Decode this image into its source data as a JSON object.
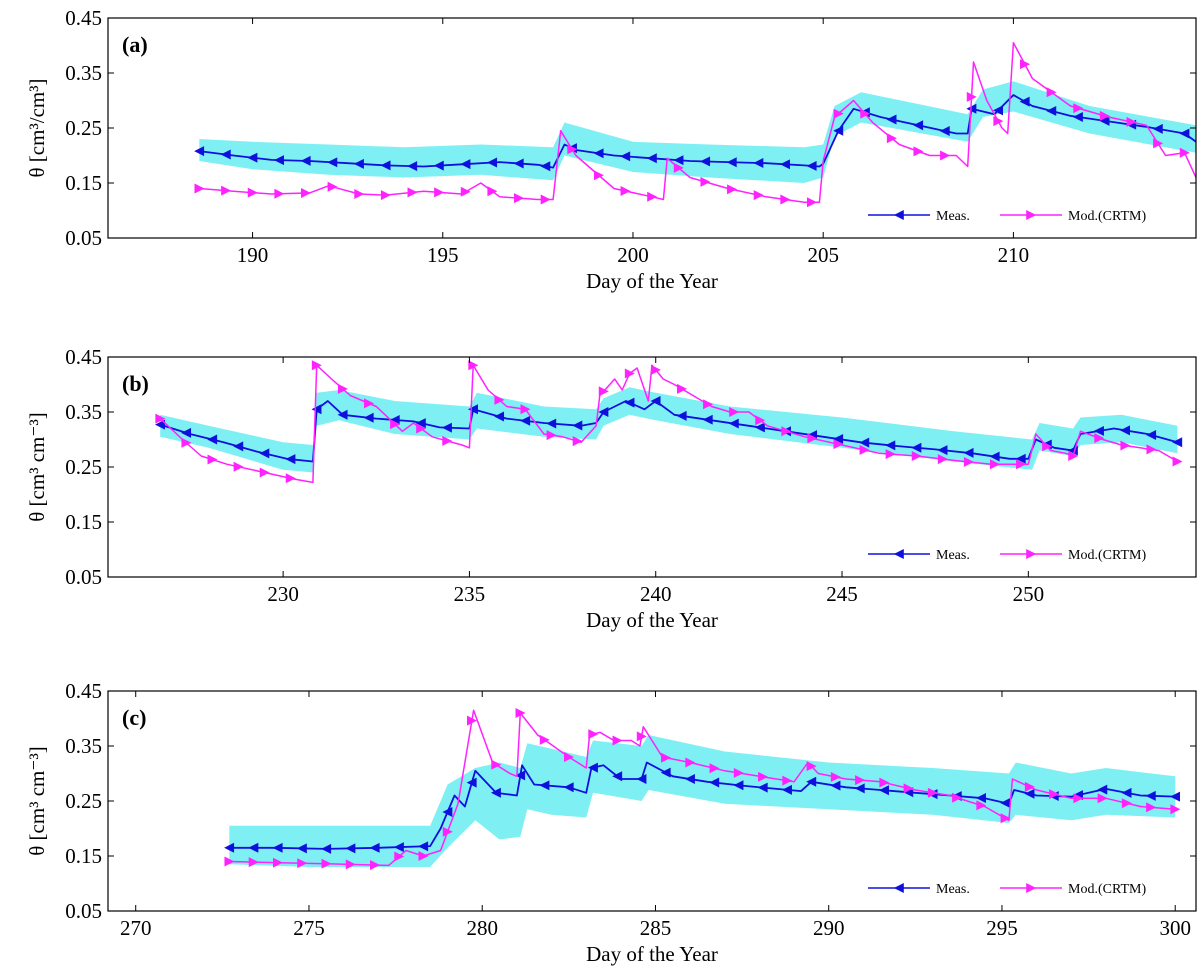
{
  "colors": {
    "meas": "#1010dd",
    "model": "#ff22ff",
    "band": "#7ef0f4",
    "axis": "#000000"
  },
  "legend": {
    "meas": "Meas.",
    "model": "Mod.(CRTM)"
  },
  "chart_data": [
    {
      "type": "line",
      "panel_label": "(a)",
      "xlabel": "Day of the Year",
      "ylabel": "θ [cm³/cm³]",
      "xlim": [
        186.2,
        214.8
      ],
      "ylim": [
        0.05,
        0.45
      ],
      "xticks": [
        190,
        195,
        200,
        205,
        210
      ],
      "yticks": [
        0.05,
        0.15,
        0.25,
        0.35,
        0.45
      ],
      "xtick_labels": [
        "190",
        "195",
        "200",
        "205",
        "210"
      ],
      "ytick_labels": [
        "0.05",
        "0.15",
        "0.25",
        "0.35",
        "0.45"
      ],
      "legend_position": "bottom-right",
      "band": {
        "name": "uncertainty band",
        "x": [
          188.6,
          190,
          192,
          194,
          196,
          197.9,
          198.2,
          200,
          202,
          204.5,
          205.0,
          205.3,
          206,
          208.8,
          209.2,
          210,
          212,
          214.8
        ],
        "upper": [
          0.23,
          0.225,
          0.22,
          0.215,
          0.22,
          0.215,
          0.26,
          0.225,
          0.22,
          0.215,
          0.22,
          0.29,
          0.315,
          0.275,
          0.32,
          0.335,
          0.29,
          0.255
        ],
        "lower": [
          0.19,
          0.175,
          0.165,
          0.16,
          0.165,
          0.155,
          0.2,
          0.17,
          0.16,
          0.15,
          0.16,
          0.235,
          0.26,
          0.225,
          0.27,
          0.28,
          0.24,
          0.205
        ]
      },
      "series": [
        {
          "name": "Meas.",
          "x": [
            188.6,
            189.5,
            190.5,
            191.5,
            192.5,
            193.5,
            194.5,
            195.5,
            196.5,
            197.5,
            197.9,
            198.2,
            198.5,
            199.5,
            200.5,
            201.5,
            202.5,
            203.5,
            204.5,
            204.9,
            205.0,
            205.4,
            205.8,
            206.5,
            207.5,
            208.5,
            208.8,
            208.9,
            209.5,
            210.0,
            210.5,
            211.5,
            212.5,
            213.5,
            214.5,
            214.8
          ],
          "y": [
            0.208,
            0.2,
            0.192,
            0.19,
            0.186,
            0.182,
            0.18,
            0.184,
            0.188,
            0.183,
            0.178,
            0.22,
            0.21,
            0.2,
            0.195,
            0.19,
            0.188,
            0.186,
            0.182,
            0.18,
            0.185,
            0.245,
            0.285,
            0.27,
            0.255,
            0.24,
            0.24,
            0.285,
            0.275,
            0.31,
            0.29,
            0.272,
            0.262,
            0.252,
            0.24,
            0.225
          ]
        },
        {
          "name": "Mod.(CRTM)",
          "x": [
            188.6,
            189.5,
            190.5,
            191.5,
            192.0,
            192.8,
            193.5,
            194.5,
            195.5,
            196.0,
            196.5,
            197.5,
            197.9,
            198.1,
            198.5,
            199.5,
            200.5,
            200.8,
            200.9,
            201.5,
            202.5,
            203.5,
            204.5,
            204.9,
            205.0,
            205.3,
            205.8,
            206.3,
            207.0,
            207.8,
            208.5,
            208.8,
            208.95,
            209.3,
            209.7,
            209.85,
            210.0,
            210.5,
            211.5,
            212.5,
            213.5,
            214.0,
            214.5,
            214.8
          ],
          "y": [
            0.14,
            0.135,
            0.13,
            0.132,
            0.145,
            0.13,
            0.128,
            0.135,
            0.13,
            0.15,
            0.125,
            0.12,
            0.12,
            0.245,
            0.2,
            0.14,
            0.125,
            0.12,
            0.195,
            0.16,
            0.14,
            0.125,
            0.115,
            0.115,
            0.19,
            0.27,
            0.3,
            0.26,
            0.22,
            0.2,
            0.2,
            0.18,
            0.37,
            0.3,
            0.25,
            0.24,
            0.405,
            0.34,
            0.29,
            0.27,
            0.255,
            0.2,
            0.205,
            0.16
          ]
        }
      ]
    },
    {
      "type": "line",
      "panel_label": "(b)",
      "xlabel": "Day of the Year",
      "ylabel": "θ [cm³ cm⁻³]",
      "xlim": [
        225.3,
        254.5
      ],
      "ylim": [
        0.05,
        0.45
      ],
      "xticks": [
        230,
        235,
        240,
        245,
        250
      ],
      "yticks": [
        0.05,
        0.15,
        0.25,
        0.35,
        0.45
      ],
      "xtick_labels": [
        "230",
        "235",
        "240",
        "245",
        "250"
      ],
      "ytick_labels": [
        "0.05",
        "0.15",
        "0.25",
        "0.35",
        "0.45"
      ],
      "legend_position": "bottom-right",
      "band": {
        "name": "uncertainty band",
        "x": [
          226.7,
          228,
          229,
          230.0,
          230.8,
          230.9,
          231.5,
          233,
          235.0,
          235.2,
          237,
          238.4,
          238.6,
          239.3,
          240,
          242,
          245,
          248,
          250.1,
          250.3,
          251.2,
          251.4,
          252.5,
          254
        ],
        "upper": [
          0.345,
          0.325,
          0.31,
          0.295,
          0.29,
          0.385,
          0.39,
          0.37,
          0.36,
          0.385,
          0.36,
          0.355,
          0.375,
          0.395,
          0.385,
          0.36,
          0.34,
          0.315,
          0.3,
          0.33,
          0.32,
          0.34,
          0.345,
          0.325
        ],
        "lower": [
          0.305,
          0.285,
          0.265,
          0.245,
          0.24,
          0.325,
          0.335,
          0.31,
          0.3,
          0.32,
          0.305,
          0.3,
          0.325,
          0.345,
          0.335,
          0.31,
          0.285,
          0.26,
          0.245,
          0.28,
          0.27,
          0.29,
          0.295,
          0.275
        ]
      },
      "series": [
        {
          "name": "Meas.",
          "x": [
            226.7,
            227.5,
            228.4,
            229.3,
            230.1,
            230.8,
            230.9,
            231.2,
            231.6,
            232.5,
            233.5,
            234.2,
            235.0,
            235.1,
            236,
            237,
            238,
            238.4,
            238.6,
            239.2,
            239.7,
            240.0,
            240.5,
            241.5,
            242.5,
            243.5,
            244.5,
            245.5,
            246.5,
            247.5,
            248.5,
            249.5,
            250.0,
            250.2,
            250.7,
            251.2,
            251.4,
            252.3,
            253.2,
            254.0
          ],
          "y": [
            0.327,
            0.31,
            0.295,
            0.278,
            0.265,
            0.26,
            0.355,
            0.37,
            0.345,
            0.338,
            0.333,
            0.322,
            0.32,
            0.355,
            0.338,
            0.33,
            0.325,
            0.33,
            0.35,
            0.37,
            0.355,
            0.37,
            0.345,
            0.335,
            0.325,
            0.315,
            0.305,
            0.295,
            0.288,
            0.282,
            0.275,
            0.265,
            0.265,
            0.3,
            0.285,
            0.28,
            0.31,
            0.32,
            0.31,
            0.295
          ]
        },
        {
          "name": "Mod.(CRTM)",
          "x": [
            226.7,
            227.3,
            227.8,
            228.5,
            229.5,
            230.3,
            230.8,
            230.9,
            231.3,
            231.8,
            232.5,
            233.2,
            233.5,
            234.0,
            234.8,
            235.0,
            235.1,
            235.5,
            236.0,
            236.5,
            237.0,
            237.5,
            238.0,
            238.4,
            238.5,
            238.7,
            238.9,
            239.1,
            239.3,
            239.5,
            239.8,
            239.9,
            240.2,
            240.5,
            241.0,
            241.5,
            242.0,
            242.5,
            243.0,
            244.0,
            245.0,
            246.0,
            247.0,
            248.0,
            249.0,
            250.0,
            250.2,
            250.6,
            251.0,
            251.2,
            251.4,
            252.0,
            252.5,
            253.0,
            253.5,
            254.0
          ],
          "y": [
            0.338,
            0.3,
            0.27,
            0.255,
            0.24,
            0.228,
            0.222,
            0.435,
            0.41,
            0.38,
            0.36,
            0.315,
            0.33,
            0.305,
            0.29,
            0.285,
            0.435,
            0.39,
            0.36,
            0.355,
            0.31,
            0.305,
            0.295,
            0.325,
            0.38,
            0.395,
            0.41,
            0.39,
            0.42,
            0.43,
            0.37,
            0.435,
            0.41,
            0.4,
            0.38,
            0.36,
            0.35,
            0.35,
            0.325,
            0.305,
            0.29,
            0.275,
            0.27,
            0.262,
            0.255,
            0.255,
            0.31,
            0.28,
            0.275,
            0.27,
            0.315,
            0.3,
            0.29,
            0.285,
            0.28,
            0.26
          ]
        }
      ]
    },
    {
      "type": "line",
      "panel_label": "(c)",
      "xlabel": "Day of the Year",
      "ylabel": "θ [cm³ cm⁻³]",
      "xlim": [
        269.2,
        300.6
      ],
      "ylim": [
        0.05,
        0.45
      ],
      "xticks": [
        270,
        275,
        280,
        285,
        290,
        295,
        300
      ],
      "yticks": [
        0.05,
        0.15,
        0.25,
        0.35,
        0.45
      ],
      "xtick_labels": [
        "270",
        "275",
        "280",
        "285",
        "290",
        "295",
        "300"
      ],
      "ytick_labels": [
        "0.05",
        "0.15",
        "0.25",
        "0.35",
        "0.45"
      ],
      "legend_position": "bottom-right",
      "band": {
        "name": "uncertainty band",
        "x": [
          272.7,
          275,
          278.5,
          279.0,
          279.8,
          280.5,
          281.1,
          281.3,
          282,
          283.0,
          283.2,
          284.6,
          284.8,
          287,
          290,
          293,
          295.2,
          295.4,
          297,
          298,
          300
        ],
        "upper": [
          0.205,
          0.205,
          0.205,
          0.28,
          0.31,
          0.32,
          0.31,
          0.355,
          0.345,
          0.33,
          0.36,
          0.35,
          0.37,
          0.34,
          0.32,
          0.31,
          0.3,
          0.32,
          0.3,
          0.31,
          0.295
        ],
        "lower": [
          0.135,
          0.13,
          0.13,
          0.165,
          0.215,
          0.18,
          0.185,
          0.235,
          0.225,
          0.22,
          0.265,
          0.25,
          0.27,
          0.245,
          0.235,
          0.225,
          0.21,
          0.225,
          0.215,
          0.225,
          0.22
        ]
      },
      "series": [
        {
          "name": "Meas.",
          "x": [
            272.7,
            274,
            275.5,
            277,
            278.5,
            278.8,
            279.2,
            279.5,
            279.8,
            280.4,
            281.0,
            281.15,
            281.5,
            282.5,
            283.0,
            283.15,
            283.5,
            284.0,
            284.6,
            284.75,
            285.5,
            286.5,
            287.5,
            288.5,
            289.2,
            289.5,
            290.5,
            291.5,
            292.5,
            293.5,
            294.5,
            295.2,
            295.35,
            296,
            297,
            298,
            299,
            300
          ],
          "y": [
            0.165,
            0.165,
            0.163,
            0.165,
            0.168,
            0.2,
            0.26,
            0.24,
            0.305,
            0.265,
            0.26,
            0.315,
            0.28,
            0.275,
            0.265,
            0.31,
            0.315,
            0.29,
            0.29,
            0.32,
            0.295,
            0.285,
            0.278,
            0.272,
            0.268,
            0.285,
            0.275,
            0.27,
            0.265,
            0.26,
            0.255,
            0.245,
            0.27,
            0.26,
            0.258,
            0.272,
            0.26,
            0.258
          ]
        },
        {
          "name": "Mod.(CRTM)",
          "x": [
            272.7,
            274,
            275.5,
            277.3,
            277.8,
            278.3,
            278.8,
            279.3,
            279.75,
            280.3,
            280.8,
            281.0,
            281.1,
            281.6,
            282.5,
            283.0,
            283.1,
            283.4,
            283.8,
            284.3,
            284.55,
            284.65,
            285.2,
            286.0,
            287.0,
            288.0,
            289.0,
            289.4,
            289.7,
            290.5,
            291.5,
            292.5,
            293.5,
            294.5,
            295.2,
            295.3,
            296,
            297,
            298,
            299,
            300
          ],
          "y": [
            0.14,
            0.138,
            0.136,
            0.133,
            0.16,
            0.15,
            0.16,
            0.245,
            0.415,
            0.32,
            0.3,
            0.295,
            0.41,
            0.37,
            0.33,
            0.31,
            0.37,
            0.375,
            0.36,
            0.36,
            0.35,
            0.385,
            0.33,
            0.32,
            0.305,
            0.295,
            0.285,
            0.32,
            0.3,
            0.29,
            0.285,
            0.27,
            0.26,
            0.24,
            0.215,
            0.29,
            0.27,
            0.255,
            0.255,
            0.24,
            0.235
          ]
        }
      ]
    }
  ]
}
